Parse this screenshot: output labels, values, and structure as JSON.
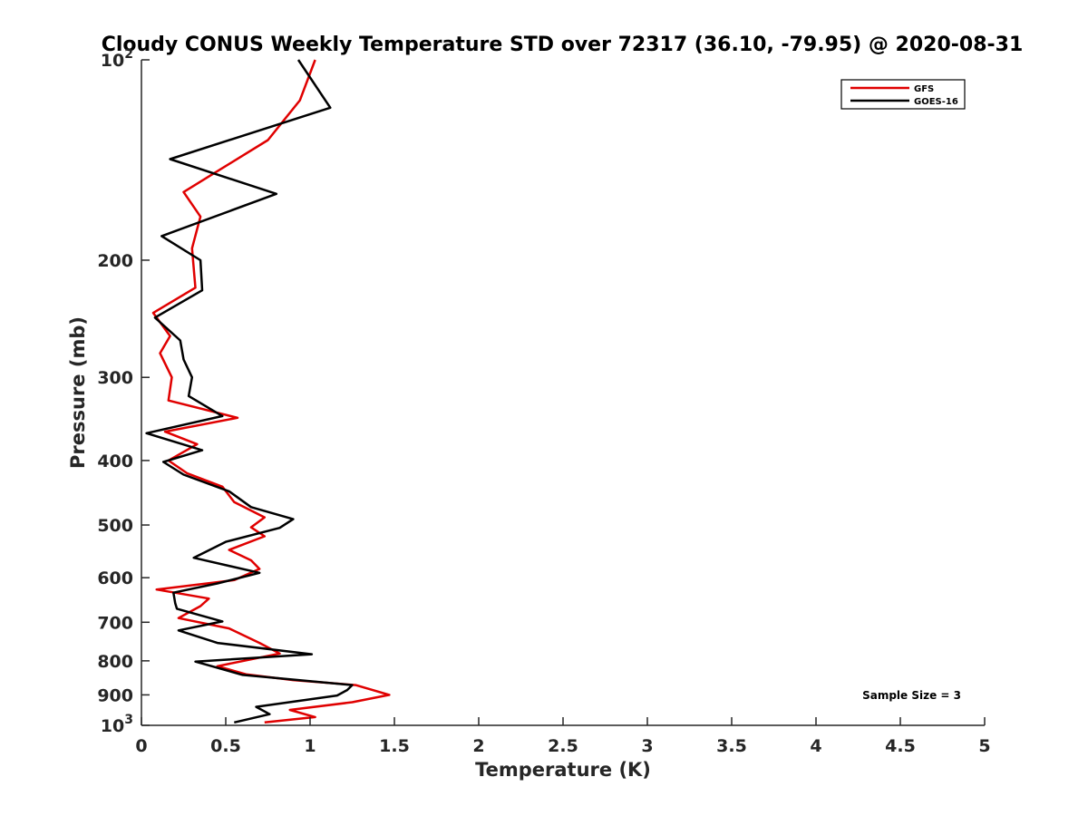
{
  "chart_data": {
    "type": "line",
    "title": "Cloudy CONUS Weekly Temperature STD over 72317 (36.10, -79.95) @ 2020-08-31",
    "xlabel": "Temperature (K)",
    "ylabel": "Pressure (mb)",
    "xlim": [
      0,
      5
    ],
    "ylim": [
      100,
      1000
    ],
    "y_scale": "log",
    "y_reversed": true,
    "grid": false,
    "legend_position": "top-right",
    "x_ticks": [
      "0",
      "0.5",
      "1",
      "1.5",
      "2",
      "2.5",
      "3",
      "3.5",
      "4",
      "4.5",
      "5"
    ],
    "y_ticks": [
      {
        "value": 100,
        "base": "10",
        "exp": "2"
      },
      {
        "value": 200,
        "label": "200"
      },
      {
        "value": 300,
        "label": "300"
      },
      {
        "value": 400,
        "label": "400"
      },
      {
        "value": 500,
        "label": "500"
      },
      {
        "value": 600,
        "label": "600"
      },
      {
        "value": 700,
        "label": "700"
      },
      {
        "value": 800,
        "label": "800"
      },
      {
        "value": 900,
        "label": "900"
      },
      {
        "value": 1000,
        "base": "10",
        "exp": "3"
      }
    ],
    "annotation": "Sample Size = 3",
    "series": [
      {
        "name": "GFS",
        "color": "#e00000",
        "points": [
          [
            1.03,
            100
          ],
          [
            0.94,
            115
          ],
          [
            0.75,
            132
          ],
          [
            0.47,
            146
          ],
          [
            0.25,
            158
          ],
          [
            0.35,
            172
          ],
          [
            0.3,
            192
          ],
          [
            0.32,
            220
          ],
          [
            0.07,
            240
          ],
          [
            0.17,
            260
          ],
          [
            0.11,
            276
          ],
          [
            0.18,
            300
          ],
          [
            0.16,
            325
          ],
          [
            0.57,
            345
          ],
          [
            0.14,
            362
          ],
          [
            0.33,
            378
          ],
          [
            0.16,
            400
          ],
          [
            0.27,
            418
          ],
          [
            0.48,
            438
          ],
          [
            0.55,
            462
          ],
          [
            0.73,
            487
          ],
          [
            0.65,
            504
          ],
          [
            0.73,
            520
          ],
          [
            0.52,
            545
          ],
          [
            0.65,
            565
          ],
          [
            0.7,
            582
          ],
          [
            0.55,
            605
          ],
          [
            0.09,
            625
          ],
          [
            0.4,
            645
          ],
          [
            0.35,
            662
          ],
          [
            0.22,
            690
          ],
          [
            0.52,
            715
          ],
          [
            0.7,
            752
          ],
          [
            0.82,
            780
          ],
          [
            0.45,
            815
          ],
          [
            0.62,
            838
          ],
          [
            0.9,
            855
          ],
          [
            1.27,
            870
          ],
          [
            1.47,
            900
          ],
          [
            1.25,
            923
          ],
          [
            0.88,
            948
          ],
          [
            1.03,
            972
          ],
          [
            0.73,
            990
          ]
        ]
      },
      {
        "name": "GOES-16",
        "color": "#000000",
        "points": [
          [
            0.93,
            100
          ],
          [
            1.12,
            118
          ],
          [
            0.17,
            141
          ],
          [
            0.8,
            159
          ],
          [
            0.12,
            184
          ],
          [
            0.35,
            200
          ],
          [
            0.36,
            222
          ],
          [
            0.08,
            244
          ],
          [
            0.23,
            264
          ],
          [
            0.25,
            282
          ],
          [
            0.3,
            300
          ],
          [
            0.28,
            320
          ],
          [
            0.48,
            343
          ],
          [
            0.03,
            364
          ],
          [
            0.36,
            386
          ],
          [
            0.13,
            402
          ],
          [
            0.25,
            420
          ],
          [
            0.52,
            445
          ],
          [
            0.65,
            470
          ],
          [
            0.9,
            490
          ],
          [
            0.82,
            505
          ],
          [
            0.5,
            530
          ],
          [
            0.31,
            560
          ],
          [
            0.7,
            590
          ],
          [
            0.45,
            612
          ],
          [
            0.19,
            632
          ],
          [
            0.2,
            655
          ],
          [
            0.21,
            668
          ],
          [
            0.48,
            698
          ],
          [
            0.22,
            720
          ],
          [
            0.45,
            752
          ],
          [
            1.01,
            782
          ],
          [
            0.32,
            802
          ],
          [
            0.6,
            840
          ],
          [
            1.25,
            870
          ],
          [
            1.22,
            885
          ],
          [
            1.16,
            902
          ],
          [
            0.68,
            938
          ],
          [
            0.76,
            962
          ],
          [
            0.55,
            990
          ]
        ]
      }
    ]
  }
}
